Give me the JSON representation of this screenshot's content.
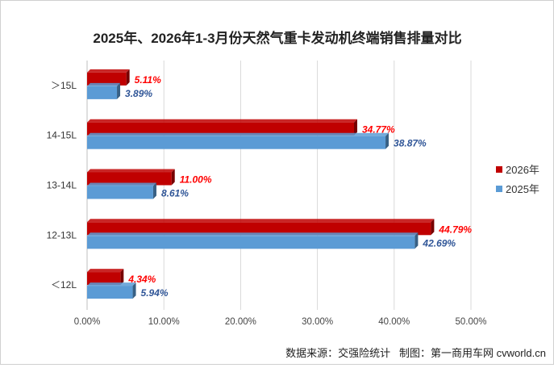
{
  "chart_data": {
    "type": "bar",
    "orientation": "horizontal",
    "title": "2025年、2026年1-3月份天然气重卡发动机终端销售排量对比",
    "categories": [
      "＞15L",
      "14-15L",
      "13-14L",
      "12-13L",
      "＜12L"
    ],
    "series": [
      {
        "name": "2026年",
        "color": "#C00000",
        "label_color": "#FF0000",
        "values": [
          5.11,
          34.77,
          11.0,
          44.79,
          4.34
        ],
        "labels": [
          "5.11%",
          "34.77%",
          "11.00%",
          "44.79%",
          "4.34%"
        ]
      },
      {
        "name": "2025年",
        "color": "#5B9BD5",
        "label_color": "#2F5597",
        "values": [
          3.89,
          38.87,
          8.61,
          42.69,
          5.94
        ],
        "labels": [
          "3.89%",
          "38.87%",
          "8.61%",
          "42.69%",
          "5.94%"
        ]
      }
    ],
    "x_ticks": [
      "0.00%",
      "10.00%",
      "20.00%",
      "30.00%",
      "40.00%",
      "50.00%"
    ],
    "xlim": [
      0,
      50
    ],
    "grid": true,
    "legend_position": "right",
    "source": "数据来源：交强险统计   制图：第一商用车网 cvworld.cn"
  }
}
